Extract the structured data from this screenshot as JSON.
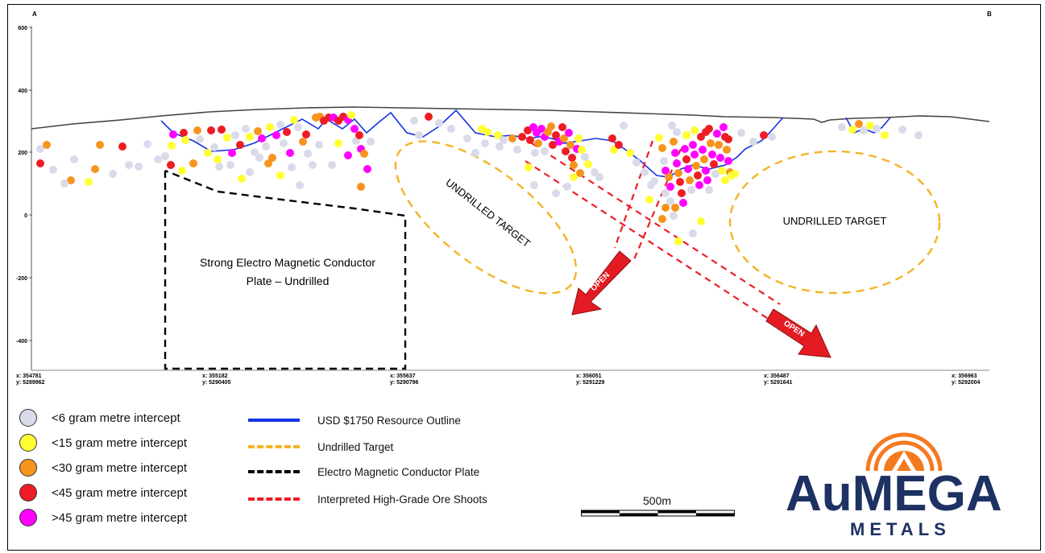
{
  "section": {
    "end_left": "A",
    "end_right": "B",
    "y_axis_ticks": [
      "600",
      "400",
      "200",
      "0",
      "-200",
      "-400"
    ],
    "x_axis_ticks": [
      {
        "x": "x: 354781",
        "y": "y: 5289962"
      },
      {
        "x": "x: 355182",
        "y": "y: 5290405"
      },
      {
        "x": "x: 355637",
        "y": "y: 5290796"
      },
      {
        "x": "x: 356051",
        "y": "y: 5291229"
      },
      {
        "x": "x: 356487",
        "y": "y: 5291641"
      },
      {
        "x": "x: 356963",
        "y": "y: 5292004"
      }
    ],
    "annotations": {
      "em_plate_line1": "Strong Electro Magnetic Conductor",
      "em_plate_line2": "Plate – Undrilled",
      "target_left": "UNDRILLED TARGET",
      "target_right": "UNDRILLED TARGET",
      "open_1": "OPEN",
      "open_2": "OPEN"
    }
  },
  "legend_intercepts": [
    {
      "label": "<6 gram metre intercept",
      "color": "#d9dbea"
    },
    {
      "label": "<15 gram metre intercept",
      "color": "#ffff33"
    },
    {
      "label": "<30 gram metre intercept",
      "color": "#f7941d"
    },
    {
      "label": "<45 gram metre intercept",
      "color": "#ee1c24"
    },
    {
      "label": ">45 gram metre intercept",
      "color": "#ff00ff"
    }
  ],
  "legend_lines": [
    {
      "label": "USD $1750 Resource Outline",
      "color": "#1432e6",
      "style": "solid"
    },
    {
      "label": "Undrilled Target",
      "color": "#f5b324",
      "style": "dashed"
    },
    {
      "label": "Electro Magnetic Conductor Plate",
      "color": "#000000",
      "style": "dashed"
    },
    {
      "label": "Interpreted High-Grade Ore Shoots",
      "color": "#ee1c24",
      "style": "dashed"
    }
  ],
  "scale_bar": {
    "label": "500m"
  },
  "logo": {
    "main": "AuMEGA",
    "sub": "METALS",
    "accent_color": "#f47a20",
    "text_color": "#1e3163"
  }
}
